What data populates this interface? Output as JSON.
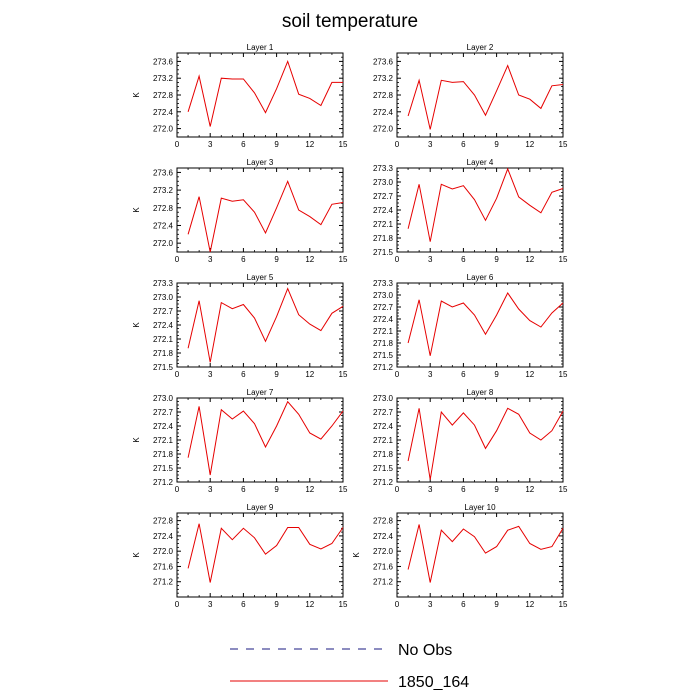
{
  "figure": {
    "title": "soil temperature"
  },
  "legend": {
    "placement": "bottom-center",
    "entries": [
      {
        "label": "No Obs",
        "color": "#1a1a80",
        "style": "dashed"
      },
      {
        "label": "1850_164",
        "color": "#e60000",
        "style": "solid"
      }
    ]
  },
  "chart_data": [
    {
      "type": "line",
      "title": "Layer 1",
      "ylabel": "K",
      "xlim": [
        0,
        15
      ],
      "x_ticks": [
        0,
        3,
        6,
        9,
        12,
        15
      ],
      "ylim": [
        271.8,
        273.8
      ],
      "y_ticks": [
        272.0,
        272.4,
        272.8,
        273.2,
        273.6
      ],
      "x": [
        1,
        2,
        3,
        4,
        5,
        6,
        7,
        8,
        9,
        10,
        11,
        12,
        13,
        14,
        15
      ],
      "series": [
        {
          "name": "1850_164",
          "color": "#e60000",
          "values": [
            272.4,
            273.25,
            272.05,
            273.2,
            273.18,
            273.18,
            272.85,
            272.38,
            272.95,
            273.6,
            272.82,
            272.72,
            272.55,
            273.1,
            273.1
          ]
        }
      ]
    },
    {
      "type": "line",
      "title": "Layer 2",
      "ylabel": "",
      "xlim": [
        0,
        15
      ],
      "x_ticks": [
        0,
        3,
        6,
        9,
        12,
        15
      ],
      "ylim": [
        271.8,
        273.8
      ],
      "y_ticks": [
        272.0,
        272.4,
        272.8,
        273.2,
        273.6
      ],
      "x": [
        1,
        2,
        3,
        4,
        5,
        6,
        7,
        8,
        9,
        10,
        11,
        12,
        13,
        14,
        15
      ],
      "series": [
        {
          "name": "1850_164",
          "color": "#e60000",
          "values": [
            272.3,
            273.15,
            271.98,
            273.15,
            273.1,
            273.12,
            272.8,
            272.32,
            272.9,
            273.5,
            272.8,
            272.7,
            272.48,
            273.02,
            273.05
          ]
        }
      ]
    },
    {
      "type": "line",
      "title": "Layer 3",
      "ylabel": "K",
      "xlim": [
        0,
        15
      ],
      "x_ticks": [
        0,
        3,
        6,
        9,
        12,
        15
      ],
      "ylim": [
        271.8,
        273.7
      ],
      "y_ticks": [
        272.0,
        272.4,
        272.8,
        273.2,
        273.6
      ],
      "x": [
        1,
        2,
        3,
        4,
        5,
        6,
        7,
        8,
        9,
        10,
        11,
        12,
        13,
        14,
        15
      ],
      "series": [
        {
          "name": "1850_164",
          "color": "#e60000",
          "values": [
            272.2,
            273.05,
            271.8,
            273.02,
            272.95,
            272.98,
            272.7,
            272.23,
            272.8,
            273.4,
            272.75,
            272.6,
            272.42,
            272.88,
            272.92
          ]
        }
      ]
    },
    {
      "type": "line",
      "title": "Layer 4",
      "ylabel": "",
      "xlim": [
        0,
        15
      ],
      "x_ticks": [
        0,
        3,
        6,
        9,
        12,
        15
      ],
      "ylim": [
        271.5,
        273.3
      ],
      "y_ticks": [
        271.5,
        271.8,
        272.1,
        272.4,
        272.7,
        273.0,
        273.3
      ],
      "x": [
        1,
        2,
        3,
        4,
        5,
        6,
        7,
        8,
        9,
        10,
        11,
        12,
        13,
        14,
        15
      ],
      "series": [
        {
          "name": "1850_164",
          "color": "#e60000",
          "values": [
            272.0,
            272.95,
            271.72,
            272.95,
            272.85,
            272.92,
            272.62,
            272.18,
            272.65,
            273.28,
            272.68,
            272.5,
            272.34,
            272.78,
            272.86
          ]
        }
      ]
    },
    {
      "type": "line",
      "title": "Layer 5",
      "ylabel": "K",
      "xlim": [
        0,
        15
      ],
      "x_ticks": [
        0,
        3,
        6,
        9,
        12,
        15
      ],
      "ylim": [
        271.5,
        273.3
      ],
      "y_ticks": [
        271.5,
        271.8,
        272.1,
        272.4,
        272.7,
        273.0,
        273.3
      ],
      "x": [
        1,
        2,
        3,
        4,
        5,
        6,
        7,
        8,
        9,
        10,
        11,
        12,
        13,
        14,
        15
      ],
      "series": [
        {
          "name": "1850_164",
          "color": "#e60000",
          "values": [
            271.9,
            272.92,
            271.6,
            272.88,
            272.75,
            272.84,
            272.55,
            272.05,
            272.58,
            273.18,
            272.62,
            272.42,
            272.28,
            272.65,
            272.8
          ]
        }
      ]
    },
    {
      "type": "line",
      "title": "Layer 6",
      "ylabel": "",
      "xlim": [
        0,
        15
      ],
      "x_ticks": [
        0,
        3,
        6,
        9,
        12,
        15
      ],
      "ylim": [
        271.2,
        273.3
      ],
      "y_ticks": [
        271.2,
        271.5,
        271.8,
        272.1,
        272.4,
        272.7,
        273.0,
        273.3
      ],
      "x": [
        1,
        2,
        3,
        4,
        5,
        6,
        7,
        8,
        9,
        10,
        11,
        12,
        13,
        14,
        15
      ],
      "series": [
        {
          "name": "1850_164",
          "color": "#e60000",
          "values": [
            271.8,
            272.88,
            271.48,
            272.85,
            272.7,
            272.8,
            272.5,
            272.02,
            272.5,
            273.05,
            272.65,
            272.36,
            272.2,
            272.55,
            272.8
          ]
        }
      ]
    },
    {
      "type": "line",
      "title": "Layer 7",
      "ylabel": "K",
      "xlim": [
        0,
        15
      ],
      "x_ticks": [
        0,
        3,
        6,
        9,
        12,
        15
      ],
      "ylim": [
        271.2,
        273.0
      ],
      "y_ticks": [
        271.2,
        271.5,
        271.8,
        272.1,
        272.4,
        272.7,
        273.0
      ],
      "x": [
        1,
        2,
        3,
        4,
        5,
        6,
        7,
        8,
        9,
        10,
        11,
        12,
        13,
        14,
        15
      ],
      "series": [
        {
          "name": "1850_164",
          "color": "#e60000",
          "values": [
            271.72,
            272.82,
            271.35,
            272.75,
            272.55,
            272.72,
            272.45,
            271.95,
            272.4,
            272.92,
            272.65,
            272.25,
            272.12,
            272.4,
            272.72
          ]
        }
      ]
    },
    {
      "type": "line",
      "title": "Layer 8",
      "ylabel": "",
      "xlim": [
        0,
        15
      ],
      "x_ticks": [
        0,
        3,
        6,
        9,
        12,
        15
      ],
      "ylim": [
        271.2,
        273.0
      ],
      "y_ticks": [
        271.2,
        271.5,
        271.8,
        272.1,
        272.4,
        272.7,
        273.0
      ],
      "x": [
        1,
        2,
        3,
        4,
        5,
        6,
        7,
        8,
        9,
        10,
        11,
        12,
        13,
        14,
        15
      ],
      "series": [
        {
          "name": "1850_164",
          "color": "#e60000",
          "values": [
            271.65,
            272.78,
            271.25,
            272.7,
            272.42,
            272.68,
            272.42,
            271.92,
            272.3,
            272.78,
            272.65,
            272.25,
            272.1,
            272.3,
            272.72
          ]
        }
      ]
    },
    {
      "type": "line",
      "title": "Layer 9",
      "ylabel": "K",
      "xlim": [
        0,
        15
      ],
      "x_ticks": [
        0,
        3,
        6,
        9,
        12,
        15
      ],
      "ylim": [
        270.8,
        273.0
      ],
      "y_ticks": [
        271.2,
        271.6,
        272.0,
        272.4,
        272.8
      ],
      "x": [
        1,
        2,
        3,
        4,
        5,
        6,
        7,
        8,
        9,
        10,
        11,
        12,
        13,
        14,
        15
      ],
      "series": [
        {
          "name": "1850_164",
          "color": "#e60000",
          "values": [
            271.55,
            272.72,
            271.18,
            272.6,
            272.3,
            272.6,
            272.35,
            271.92,
            272.15,
            272.62,
            272.62,
            272.18,
            272.06,
            272.2,
            272.62
          ]
        }
      ]
    },
    {
      "type": "line",
      "title": "Layer 10",
      "ylabel": "K",
      "xlim": [
        0,
        15
      ],
      "x_ticks": [
        0,
        3,
        6,
        9,
        12,
        15
      ],
      "ylim": [
        270.8,
        273.0
      ],
      "y_ticks": [
        271.2,
        271.6,
        272.0,
        272.4,
        272.8
      ],
      "x": [
        1,
        2,
        3,
        4,
        5,
        6,
        7,
        8,
        9,
        10,
        11,
        12,
        13,
        14,
        15
      ],
      "series": [
        {
          "name": "1850_164",
          "color": "#e60000",
          "values": [
            271.52,
            272.7,
            271.18,
            272.55,
            272.25,
            272.58,
            272.38,
            271.95,
            272.12,
            272.55,
            272.65,
            272.2,
            272.05,
            272.12,
            272.6
          ]
        }
      ]
    }
  ]
}
